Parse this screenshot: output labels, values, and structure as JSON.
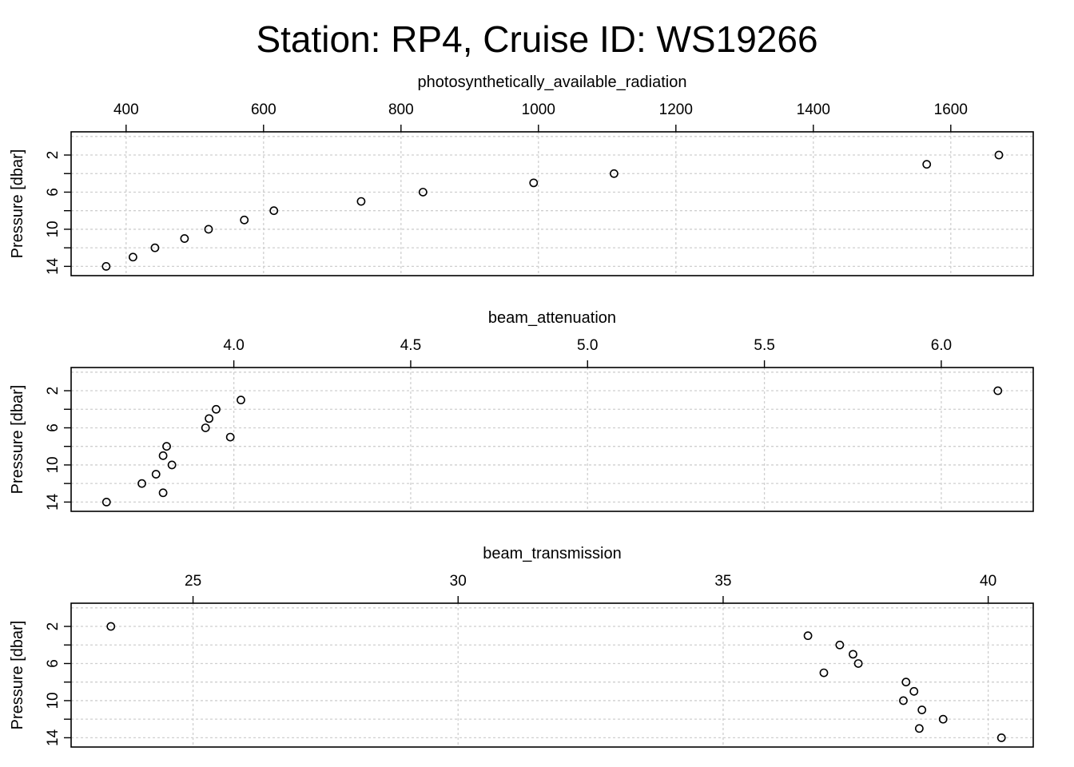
{
  "title": "Station: RP4, Cruise ID: WS19266",
  "chart_data": [
    {
      "type": "scatter",
      "xlabel": "photosynthetically_available_radiation",
      "ylabel": "Pressure [dbar]",
      "xlim": [
        320,
        1720
      ],
      "ylim": [
        15,
        -0.5
      ],
      "y_inverted": true,
      "x_ticks": [
        400,
        600,
        800,
        1000,
        1200,
        1400,
        1600
      ],
      "y_ticks": [
        2,
        6,
        10,
        14
      ],
      "grid": true,
      "series": [
        {
          "x": [
            1670,
            1565,
            1110,
            993,
            832,
            742,
            615,
            572,
            520,
            485,
            442,
            410,
            371
          ],
          "y": [
            2,
            3,
            4,
            5,
            6,
            7,
            8,
            9,
            10,
            11,
            12,
            13,
            14
          ]
        }
      ]
    },
    {
      "type": "scatter",
      "xlabel": "beam_attenuation",
      "ylabel": "Pressure [dbar]",
      "xlim": [
        3.54,
        6.26
      ],
      "ylim": [
        15,
        -0.5
      ],
      "y_inverted": true,
      "x_ticks": [
        4.0,
        4.5,
        5.0,
        5.5,
        6.0
      ],
      "y_ticks": [
        2,
        6,
        10,
        14
      ],
      "grid": true,
      "series": [
        {
          "x": [
            6.16,
            4.02,
            3.95,
            3.93,
            3.92,
            3.99,
            3.81,
            3.8,
            3.825,
            3.78,
            3.74,
            3.8,
            3.64
          ],
          "y": [
            2,
            3,
            4,
            5,
            6,
            7,
            8,
            9,
            10,
            11,
            12,
            13,
            14
          ]
        }
      ]
    },
    {
      "type": "scatter",
      "xlabel": "beam_transmission",
      "ylabel": "Pressure [dbar]",
      "xlim": [
        22.7,
        40.85
      ],
      "ylim": [
        15,
        -0.5
      ],
      "y_inverted": true,
      "x_ticks": [
        25,
        30,
        35,
        40
      ],
      "y_ticks": [
        2,
        6,
        10,
        14
      ],
      "grid": true,
      "series": [
        {
          "x": [
            23.45,
            36.6,
            37.2,
            37.45,
            37.55,
            36.9,
            38.45,
            38.6,
            38.4,
            38.75,
            39.15,
            38.7,
            40.25
          ],
          "y": [
            2,
            3,
            4,
            5,
            6,
            7,
            8,
            9,
            10,
            11,
            12,
            13,
            14
          ]
        }
      ]
    }
  ]
}
